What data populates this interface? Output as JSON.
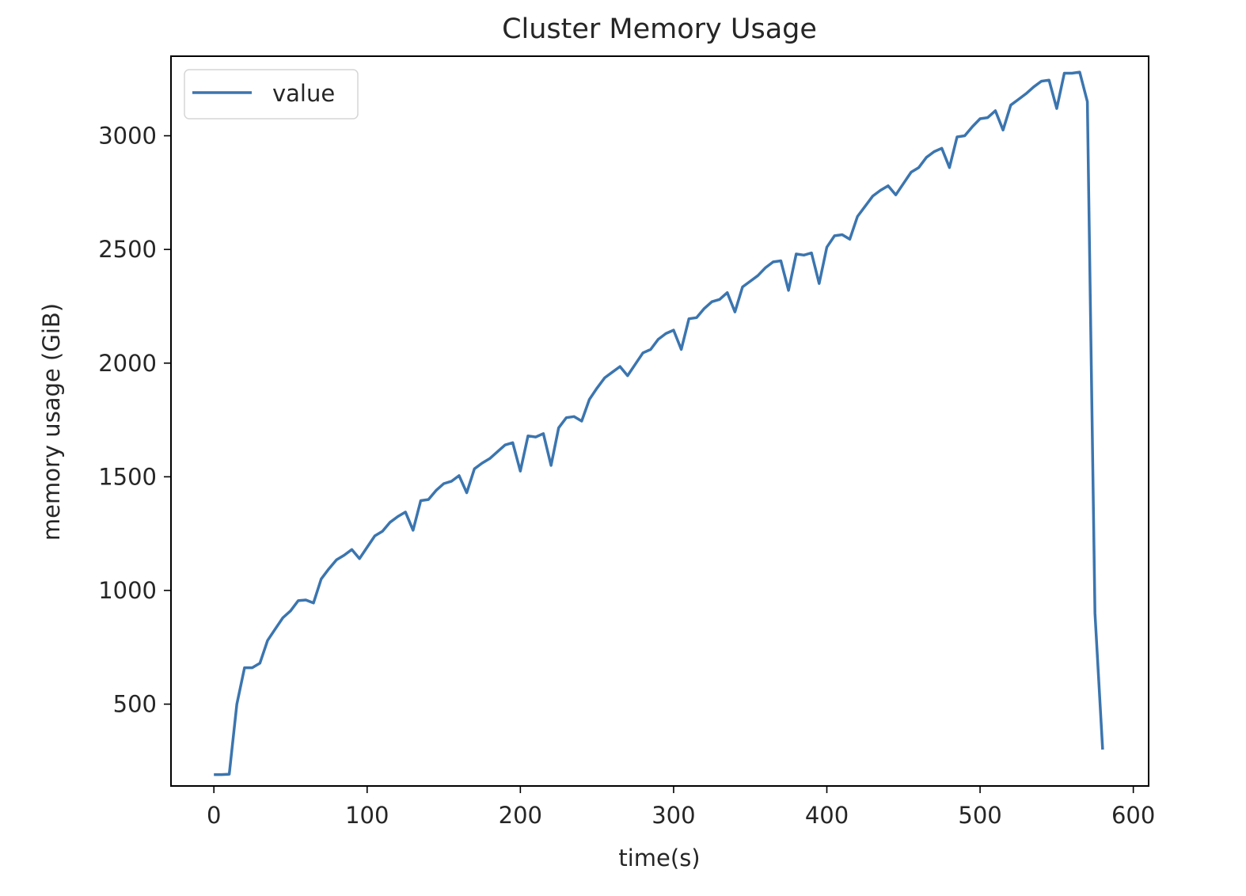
{
  "chart_data": {
    "type": "line",
    "title": "Cluster Memory Usage",
    "xlabel": "time(s)",
    "ylabel": "memory usage (GiB)",
    "xlim": [
      -28,
      610
    ],
    "ylim": [
      140,
      3350
    ],
    "xticks": [
      0,
      100,
      200,
      300,
      400,
      500,
      600
    ],
    "yticks": [
      500,
      1000,
      1500,
      2000,
      2500,
      3000
    ],
    "grid": false,
    "legend": {
      "placement": "top-left",
      "entries": [
        "value"
      ]
    },
    "series": [
      {
        "name": "value",
        "color": "#3b75af",
        "x": [
          0,
          5,
          10,
          15,
          20,
          25,
          30,
          35,
          40,
          45,
          50,
          55,
          60,
          65,
          70,
          75,
          80,
          85,
          90,
          95,
          100,
          105,
          110,
          115,
          120,
          125,
          130,
          135,
          140,
          145,
          150,
          155,
          160,
          165,
          170,
          175,
          180,
          185,
          190,
          195,
          200,
          205,
          210,
          215,
          220,
          225,
          230,
          235,
          240,
          245,
          250,
          255,
          260,
          265,
          270,
          275,
          280,
          285,
          290,
          295,
          300,
          305,
          310,
          315,
          320,
          325,
          330,
          335,
          340,
          345,
          350,
          355,
          360,
          365,
          370,
          375,
          380,
          385,
          390,
          395,
          400,
          405,
          410,
          415,
          420,
          425,
          430,
          435,
          440,
          445,
          450,
          455,
          460,
          465,
          470,
          475,
          480,
          485,
          490,
          495,
          500,
          505,
          510,
          515,
          520,
          525,
          530,
          535,
          540,
          545,
          550,
          555,
          560,
          565,
          570,
          575,
          580
        ],
        "values": [
          190,
          190,
          192,
          500,
          660,
          660,
          680,
          780,
          830,
          880,
          910,
          955,
          958,
          945,
          1050,
          1095,
          1135,
          1155,
          1180,
          1140,
          1190,
          1240,
          1260,
          1300,
          1325,
          1345,
          1265,
          1395,
          1400,
          1440,
          1470,
          1480,
          1505,
          1430,
          1535,
          1560,
          1580,
          1610,
          1640,
          1650,
          1525,
          1680,
          1675,
          1690,
          1550,
          1715,
          1760,
          1765,
          1745,
          1840,
          1890,
          1935,
          1960,
          1985,
          1945,
          1995,
          2045,
          2060,
          2105,
          2130,
          2145,
          2060,
          2195,
          2200,
          2240,
          2270,
          2280,
          2310,
          2225,
          2335,
          2360,
          2385,
          2420,
          2445,
          2450,
          2320,
          2480,
          2475,
          2485,
          2350,
          2510,
          2560,
          2565,
          2545,
          2645,
          2690,
          2735,
          2760,
          2780,
          2740,
          2790,
          2840,
          2860,
          2905,
          2930,
          2945,
          2860,
          2995,
          3000,
          3040,
          3075,
          3080,
          3110,
          3025,
          3135,
          3160,
          3185,
          3215,
          3240,
          3245,
          3120,
          3275,
          3275,
          3280,
          3150,
          900,
          300
        ]
      }
    ]
  }
}
